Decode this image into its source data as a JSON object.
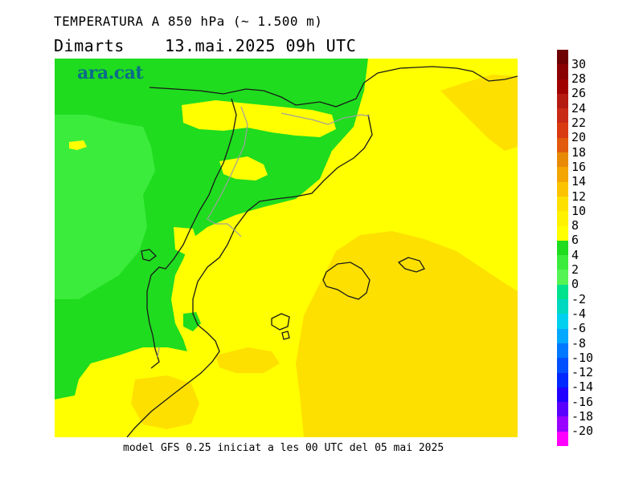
{
  "header": {
    "title": "TEMPERATURA A 850 hPa (~ 1.500 m)",
    "subtitle": "Dimarts    13.mai.2025 09h UTC"
  },
  "logo": {
    "text": "ara.cat"
  },
  "footer": {
    "text": "model GFS 0.25 iniciat a les 00 UTC del 05 mai 2025"
  },
  "colorbar": {
    "labels": [
      "30",
      "28",
      "26",
      "24",
      "22",
      "20",
      "18",
      "16",
      "14",
      "12",
      "10",
      "8",
      "6",
      "4",
      "2",
      "0",
      "-2",
      "-4",
      "-6",
      "-8",
      "-10",
      "-12",
      "-14",
      "-16",
      "-18",
      "-20"
    ],
    "colors": [
      "#6e0000",
      "#8b0000",
      "#a00000",
      "#b51a12",
      "#c92a16",
      "#d93a10",
      "#e25a0c",
      "#e98a06",
      "#f3a500",
      "#fcc400",
      "#fde000",
      "#fff200",
      "#ffff00",
      "#1fdc1f",
      "#3cec3c",
      "#54f454",
      "#00e28c",
      "#00d8c0",
      "#00d0f0",
      "#00a8ff",
      "#0078ff",
      "#0050ff",
      "#0028ff",
      "#2000ff",
      "#5a00ff",
      "#9a00ff",
      "#ff00ff"
    ]
  },
  "map": {
    "colors": {
      "green_dark": "#1fdc1f",
      "green_light": "#3cec3c",
      "yellow": "#ffff00",
      "yellow_orange": "#fde000",
      "orange": "#fcc400",
      "boundary": "#1a1a1a",
      "internal_boundary": "#a0a0a0"
    }
  }
}
